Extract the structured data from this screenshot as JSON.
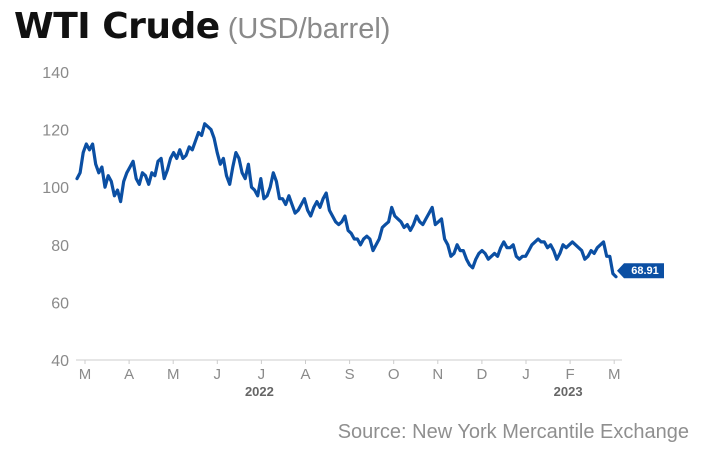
{
  "header": {
    "title": "WTI Crude",
    "subtitle": "(USD/barrel)"
  },
  "source": "Source: New York Mercantile Exchange",
  "colors": {
    "line": "#0b4fa3",
    "axis_text": "#8a8a8a",
    "year_text": "#666666",
    "axis_line": "#cccccc"
  },
  "chart_data": {
    "type": "line",
    "title": "WTI Crude",
    "subtitle": "(USD/barrel)",
    "xlabel": "",
    "ylabel": "",
    "ylim": [
      40,
      140
    ],
    "yticks": [
      40,
      60,
      80,
      100,
      120,
      140
    ],
    "grid": false,
    "x_tick_labels": [
      "M",
      "A",
      "M",
      "J",
      "J",
      "A",
      "S",
      "O",
      "N",
      "D",
      "J",
      "F",
      "M"
    ],
    "year_labels": [
      {
        "label": "2022",
        "at_tick": 4
      },
      {
        "label": "2023",
        "at_tick": 11
      }
    ],
    "end_label": "68.91",
    "series": [
      {
        "values": [
          103,
          105,
          112,
          115,
          113,
          115,
          108,
          105,
          107,
          100,
          104,
          102,
          97,
          99,
          95,
          102,
          105,
          107,
          109,
          103,
          101,
          105,
          104,
          101,
          105,
          104,
          109,
          110,
          103,
          106,
          110,
          112,
          110,
          113,
          110,
          111,
          114,
          113,
          116,
          119,
          118,
          122,
          121,
          120,
          117,
          112,
          108,
          110,
          104,
          101,
          107,
          112,
          110,
          105,
          103,
          108,
          100,
          99,
          97,
          103,
          96,
          97,
          100,
          105,
          102,
          96,
          96,
          94,
          97,
          94,
          91,
          92,
          94,
          96,
          92,
          90,
          93,
          95,
          93,
          96,
          98,
          92,
          90,
          88,
          87,
          88,
          90,
          85,
          84,
          82,
          82,
          80,
          82,
          83,
          82,
          78,
          80,
          82,
          86,
          87,
          88,
          93,
          90,
          89,
          88,
          86,
          87,
          85,
          87,
          90,
          88,
          87,
          89,
          91,
          93,
          87,
          88,
          89,
          82,
          80,
          76,
          77,
          80,
          78,
          78,
          75,
          73,
          72,
          75,
          77,
          78,
          77,
          75,
          76,
          77,
          76,
          79,
          81,
          79,
          79,
          80,
          76,
          75,
          76,
          76,
          78,
          80,
          81,
          82,
          81,
          81,
          79,
          80,
          78,
          75,
          77,
          80,
          79,
          80,
          81,
          80,
          79,
          78,
          75,
          76,
          78,
          77,
          79,
          80,
          81,
          76,
          76,
          70,
          68.91
        ]
      }
    ]
  }
}
